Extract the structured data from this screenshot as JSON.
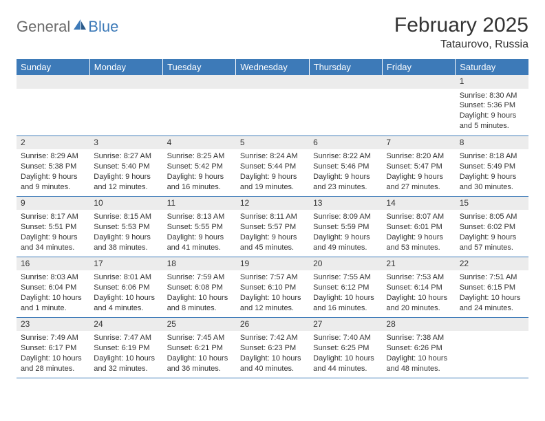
{
  "logo": {
    "text1": "General",
    "text2": "Blue"
  },
  "title": "February 2025",
  "location": "Tataurovo, Russia",
  "colors": {
    "header_bg": "#3d7ab8",
    "header_text": "#ffffff",
    "daynum_bg": "#ececec",
    "rule": "#3d7ab8",
    "body_text": "#333333",
    "logo_gray": "#6b6b6b",
    "logo_blue": "#3d7ab8"
  },
  "weekdays": [
    "Sunday",
    "Monday",
    "Tuesday",
    "Wednesday",
    "Thursday",
    "Friday",
    "Saturday"
  ],
  "weeks": [
    [
      null,
      null,
      null,
      null,
      null,
      null,
      {
        "n": "1",
        "sr": "8:30 AM",
        "ss": "5:36 PM",
        "dl": "9 hours and 5 minutes."
      }
    ],
    [
      {
        "n": "2",
        "sr": "8:29 AM",
        "ss": "5:38 PM",
        "dl": "9 hours and 9 minutes."
      },
      {
        "n": "3",
        "sr": "8:27 AM",
        "ss": "5:40 PM",
        "dl": "9 hours and 12 minutes."
      },
      {
        "n": "4",
        "sr": "8:25 AM",
        "ss": "5:42 PM",
        "dl": "9 hours and 16 minutes."
      },
      {
        "n": "5",
        "sr": "8:24 AM",
        "ss": "5:44 PM",
        "dl": "9 hours and 19 minutes."
      },
      {
        "n": "6",
        "sr": "8:22 AM",
        "ss": "5:46 PM",
        "dl": "9 hours and 23 minutes."
      },
      {
        "n": "7",
        "sr": "8:20 AM",
        "ss": "5:47 PM",
        "dl": "9 hours and 27 minutes."
      },
      {
        "n": "8",
        "sr": "8:18 AM",
        "ss": "5:49 PM",
        "dl": "9 hours and 30 minutes."
      }
    ],
    [
      {
        "n": "9",
        "sr": "8:17 AM",
        "ss": "5:51 PM",
        "dl": "9 hours and 34 minutes."
      },
      {
        "n": "10",
        "sr": "8:15 AM",
        "ss": "5:53 PM",
        "dl": "9 hours and 38 minutes."
      },
      {
        "n": "11",
        "sr": "8:13 AM",
        "ss": "5:55 PM",
        "dl": "9 hours and 41 minutes."
      },
      {
        "n": "12",
        "sr": "8:11 AM",
        "ss": "5:57 PM",
        "dl": "9 hours and 45 minutes."
      },
      {
        "n": "13",
        "sr": "8:09 AM",
        "ss": "5:59 PM",
        "dl": "9 hours and 49 minutes."
      },
      {
        "n": "14",
        "sr": "8:07 AM",
        "ss": "6:01 PM",
        "dl": "9 hours and 53 minutes."
      },
      {
        "n": "15",
        "sr": "8:05 AM",
        "ss": "6:02 PM",
        "dl": "9 hours and 57 minutes."
      }
    ],
    [
      {
        "n": "16",
        "sr": "8:03 AM",
        "ss": "6:04 PM",
        "dl": "10 hours and 1 minute."
      },
      {
        "n": "17",
        "sr": "8:01 AM",
        "ss": "6:06 PM",
        "dl": "10 hours and 4 minutes."
      },
      {
        "n": "18",
        "sr": "7:59 AM",
        "ss": "6:08 PM",
        "dl": "10 hours and 8 minutes."
      },
      {
        "n": "19",
        "sr": "7:57 AM",
        "ss": "6:10 PM",
        "dl": "10 hours and 12 minutes."
      },
      {
        "n": "20",
        "sr": "7:55 AM",
        "ss": "6:12 PM",
        "dl": "10 hours and 16 minutes."
      },
      {
        "n": "21",
        "sr": "7:53 AM",
        "ss": "6:14 PM",
        "dl": "10 hours and 20 minutes."
      },
      {
        "n": "22",
        "sr": "7:51 AM",
        "ss": "6:15 PM",
        "dl": "10 hours and 24 minutes."
      }
    ],
    [
      {
        "n": "23",
        "sr": "7:49 AM",
        "ss": "6:17 PM",
        "dl": "10 hours and 28 minutes."
      },
      {
        "n": "24",
        "sr": "7:47 AM",
        "ss": "6:19 PM",
        "dl": "10 hours and 32 minutes."
      },
      {
        "n": "25",
        "sr": "7:45 AM",
        "ss": "6:21 PM",
        "dl": "10 hours and 36 minutes."
      },
      {
        "n": "26",
        "sr": "7:42 AM",
        "ss": "6:23 PM",
        "dl": "10 hours and 40 minutes."
      },
      {
        "n": "27",
        "sr": "7:40 AM",
        "ss": "6:25 PM",
        "dl": "10 hours and 44 minutes."
      },
      {
        "n": "28",
        "sr": "7:38 AM",
        "ss": "6:26 PM",
        "dl": "10 hours and 48 minutes."
      },
      null
    ]
  ],
  "labels": {
    "sunrise": "Sunrise:",
    "sunset": "Sunset:",
    "daylight": "Daylight:"
  }
}
